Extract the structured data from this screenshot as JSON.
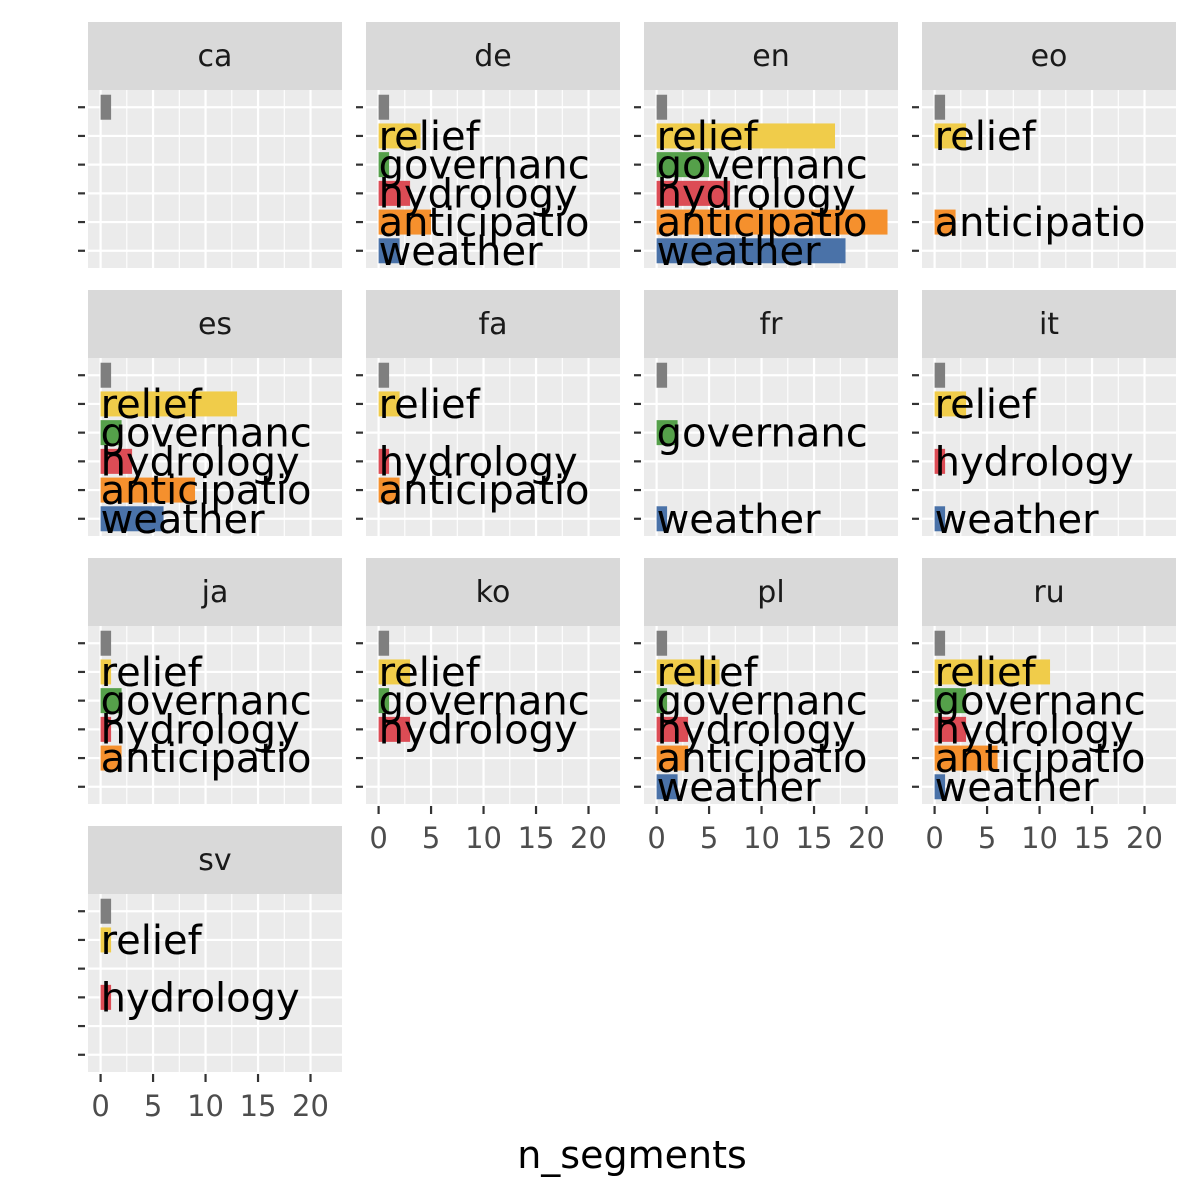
{
  "chart_data": {
    "type": "bar",
    "orientation": "horizontal",
    "xlabel": "n_segments",
    "ylabel": "",
    "xlim": [
      -1.2,
      23
    ],
    "x_ticks": [
      0,
      5,
      10,
      15,
      20
    ],
    "grid": true,
    "legend": "none",
    "categories": [
      "",
      "relief",
      "governanc",
      "hydrology",
      "anticipatio",
      "weather"
    ],
    "category_colors": [
      "#7f7f7f",
      "#f0cc4a",
      "#55a04a",
      "#dc4c55",
      "#f5902d",
      "#4a72a8"
    ],
    "panels": [
      {
        "name": "ca",
        "values": [
          1,
          0,
          0,
          0,
          0,
          0
        ]
      },
      {
        "name": "de",
        "values": [
          1,
          4,
          1,
          3,
          5,
          2
        ]
      },
      {
        "name": "en",
        "values": [
          1,
          17,
          5,
          7,
          22,
          18
        ]
      },
      {
        "name": "eo",
        "values": [
          1,
          3,
          0,
          0,
          2,
          0
        ]
      },
      {
        "name": "es",
        "values": [
          1,
          13,
          2,
          3,
          9,
          6
        ]
      },
      {
        "name": "fa",
        "values": [
          1,
          2,
          0,
          1,
          2,
          0
        ]
      },
      {
        "name": "fr",
        "values": [
          1,
          0,
          2,
          0,
          0,
          1
        ]
      },
      {
        "name": "it",
        "values": [
          1,
          3,
          0,
          1,
          0,
          1
        ]
      },
      {
        "name": "ja",
        "values": [
          1,
          1,
          2,
          1,
          2,
          0
        ]
      },
      {
        "name": "ko",
        "values": [
          1,
          3,
          1,
          3,
          0,
          0
        ]
      },
      {
        "name": "pl",
        "values": [
          1,
          6,
          1,
          3,
          3,
          2
        ]
      },
      {
        "name": "ru",
        "values": [
          1,
          11,
          3,
          3,
          6,
          1
        ]
      },
      {
        "name": "sv",
        "values": [
          1,
          1,
          0,
          1,
          0,
          0
        ]
      }
    ]
  }
}
